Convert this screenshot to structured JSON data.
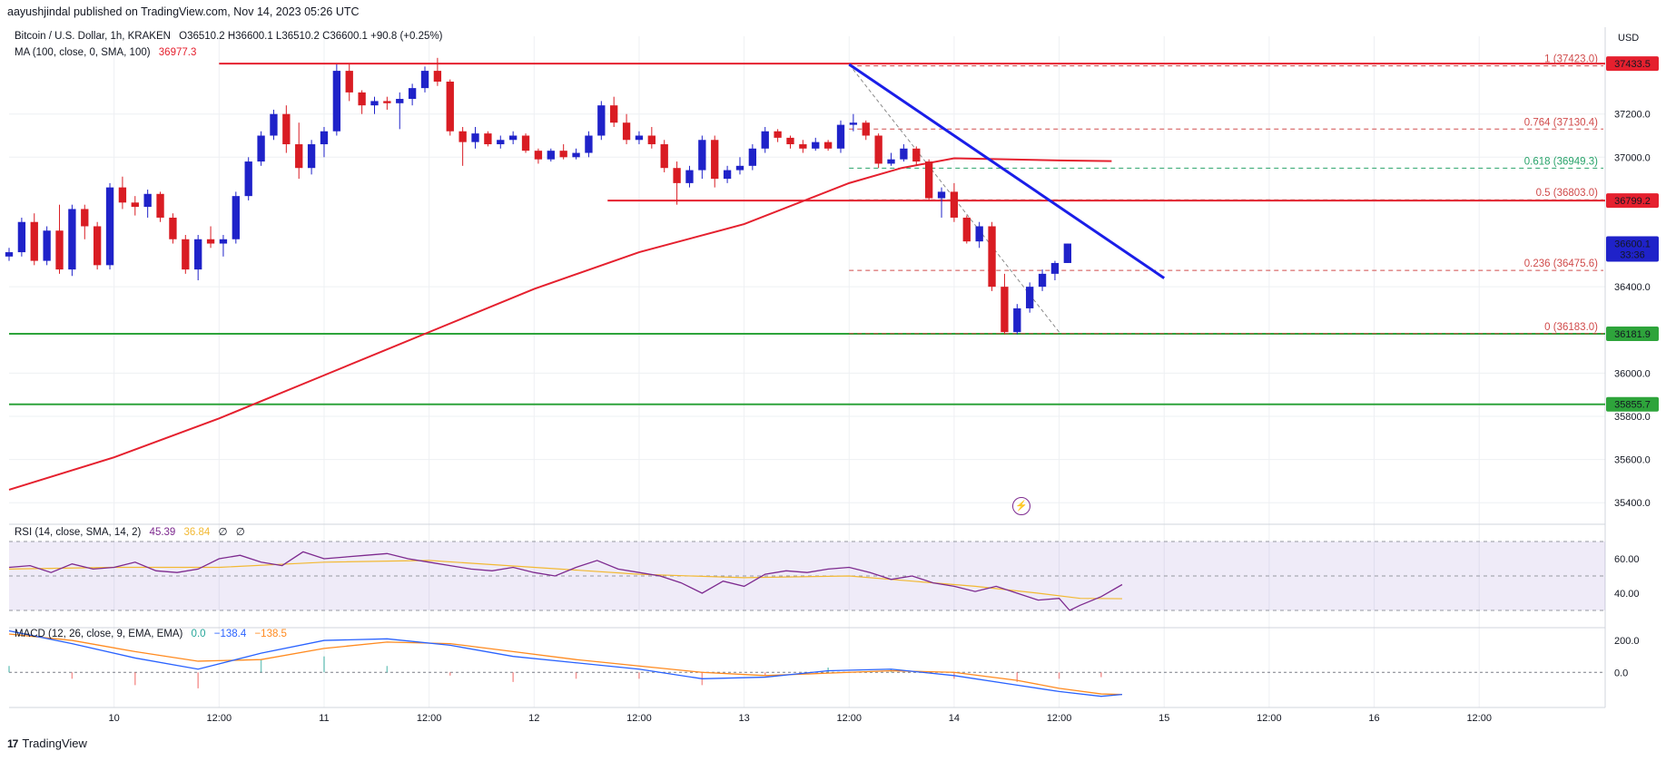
{
  "header": {
    "publisher": "aayushjindal published on TradingView.com, Nov 14, 2023 05:26 UTC"
  },
  "legend": {
    "symbol": "Bitcoin / U.S. Dollar, 1h, KRAKEN",
    "ohlc": "O36510.2 H36600.1 L36510.2 C36600.1 +90.8 (+0.25%)",
    "ma_label": "MA (100, close, 0, SMA, 100)",
    "ma_value": "36977.3",
    "rsi_label": "RSI (14, close, SMA, 14, 2)",
    "rsi_value": "45.39",
    "rsi_sma_value": "36.84",
    "rsi_extra1": "∅",
    "rsi_extra2": "∅",
    "macd_label": "MACD (12, 26, close, 9, EMA, EMA)",
    "macd_hist": "0.0",
    "macd_value": "−138.4",
    "macd_signal": "−138.5"
  },
  "currency": "USD",
  "brand": "TradingView",
  "colors": {
    "up": "#1f22c9",
    "down": "#d91c23",
    "ma": "#e5202e",
    "trendline": "#1a1ee8",
    "resistance": "#e5202e",
    "support": "#2ea43b",
    "fib": "#d04b4b",
    "fib_green": "#28a36a",
    "rsi": "#7d2a8f",
    "rsi_sma": "#f2b933",
    "macd": "#2962ff",
    "macd_signal": "#ff8a1f"
  },
  "chart_data": {
    "type": "candlestick",
    "price_ticks": [
      "37200.0",
      "37000.0",
      "36400.0",
      "36000.0",
      "35800.0",
      "35600.0",
      "35400.0"
    ],
    "rsi_ticks": [
      "60.00",
      "40.00"
    ],
    "macd_ticks": [
      "200.0",
      "0.0"
    ],
    "x_ticks": [
      "10",
      "12:00",
      "11",
      "12:00",
      "12",
      "12:00",
      "13",
      "12:00",
      "14",
      "12:00",
      "15",
      "12:00",
      "16",
      "12:00"
    ],
    "badges": [
      {
        "label": "37433.5",
        "price": 37433.5,
        "color": "#e5202e"
      },
      {
        "label": "36799.2",
        "price": 36799.2,
        "color": "#e5202e"
      },
      {
        "label": "36600.1",
        "sub": "33:36",
        "price": 36600.1,
        "color": "#1f22c9"
      },
      {
        "label": "36181.9",
        "price": 36181.9,
        "color": "#2ea43b"
      },
      {
        "label": "35855.7",
        "price": 35855.7,
        "color": "#2ea43b"
      }
    ],
    "horizontal_levels": [
      {
        "price": 37433.5,
        "kind": "resistance"
      },
      {
        "price": 36799.2,
        "kind": "resistance"
      },
      {
        "price": 36181.9,
        "kind": "support"
      },
      {
        "price": 35855.7,
        "kind": "support"
      }
    ],
    "fibonacci": [
      {
        "ratio": "1",
        "value": "(37423.0)",
        "price": 37423.0
      },
      {
        "ratio": "0.764",
        "value": "(37130.4)",
        "price": 37130.4
      },
      {
        "ratio": "0.618",
        "value": "(36949.3)",
        "price": 36949.3
      },
      {
        "ratio": "0.5",
        "value": "(36803.0)",
        "price": 36803.0
      },
      {
        "ratio": "0.236",
        "value": "(36475.6)",
        "price": 36475.6
      },
      {
        "ratio": "0",
        "value": "(36183.0)",
        "price": 36183.0
      }
    ],
    "trendline": {
      "start": {
        "day": 13.0,
        "price": 37430
      },
      "end": {
        "day": 14.5,
        "price": 36440
      }
    },
    "fib_diagonal": {
      "start": {
        "day": 13.0,
        "price": 37430
      },
      "end": {
        "day": 14.0,
        "price": 36190
      }
    },
    "ma_series": [
      [
        9.0,
        35460
      ],
      [
        9.5,
        35610
      ],
      [
        10.0,
        35790
      ],
      [
        10.5,
        35990
      ],
      [
        11.0,
        36190
      ],
      [
        11.5,
        36390
      ],
      [
        12.0,
        36560
      ],
      [
        12.5,
        36690
      ],
      [
        13.0,
        36880
      ],
      [
        13.25,
        36950
      ],
      [
        13.5,
        36995
      ],
      [
        14.0,
        36985
      ],
      [
        14.25,
        36982
      ]
    ],
    "candles": [
      [
        9.0,
        36540,
        36580,
        36520,
        36560
      ],
      [
        9.06,
        36560,
        36720,
        36540,
        36700
      ],
      [
        9.12,
        36700,
        36740,
        36500,
        36520
      ],
      [
        9.18,
        36520,
        36680,
        36500,
        36660
      ],
      [
        9.24,
        36660,
        36780,
        36460,
        36480
      ],
      [
        9.3,
        36480,
        36780,
        36450,
        36760
      ],
      [
        9.36,
        36760,
        36780,
        36620,
        36680
      ],
      [
        9.42,
        36680,
        36700,
        36480,
        36500
      ],
      [
        9.48,
        36500,
        36880,
        36480,
        36860
      ],
      [
        9.54,
        36860,
        36910,
        36760,
        36790
      ],
      [
        9.6,
        36790,
        36820,
        36730,
        36770
      ],
      [
        9.66,
        36770,
        36850,
        36720,
        36830
      ],
      [
        9.72,
        36830,
        36840,
        36700,
        36720
      ],
      [
        9.78,
        36720,
        36740,
        36600,
        36620
      ],
      [
        9.84,
        36620,
        36640,
        36460,
        36480
      ],
      [
        9.9,
        36480,
        36640,
        36430,
        36620
      ],
      [
        9.96,
        36620,
        36680,
        36580,
        36600
      ],
      [
        10.02,
        36600,
        36640,
        36540,
        36620
      ],
      [
        10.08,
        36620,
        36840,
        36600,
        36820
      ],
      [
        10.14,
        36820,
        37000,
        36800,
        36980
      ],
      [
        10.2,
        36980,
        37120,
        36960,
        37100
      ],
      [
        10.26,
        37100,
        37220,
        37080,
        37200
      ],
      [
        10.32,
        37200,
        37240,
        37020,
        37060
      ],
      [
        10.38,
        37060,
        37160,
        36900,
        36950
      ],
      [
        10.44,
        36950,
        37080,
        36920,
        37060
      ],
      [
        10.5,
        37060,
        37140,
        37000,
        37120
      ],
      [
        10.56,
        37120,
        37430,
        37100,
        37400
      ],
      [
        10.62,
        37400,
        37430,
        37260,
        37300
      ],
      [
        10.68,
        37300,
        37310,
        37200,
        37240
      ],
      [
        10.74,
        37240,
        37280,
        37200,
        37260
      ],
      [
        10.8,
        37260,
        37280,
        37220,
        37250
      ],
      [
        10.86,
        37250,
        37300,
        37130,
        37270
      ],
      [
        10.92,
        37270,
        37340,
        37240,
        37320
      ],
      [
        10.98,
        37320,
        37420,
        37300,
        37400
      ],
      [
        11.04,
        37400,
        37460,
        37330,
        37350
      ],
      [
        11.1,
        37350,
        37360,
        37100,
        37120
      ],
      [
        11.16,
        37120,
        37140,
        36960,
        37070
      ],
      [
        11.22,
        37070,
        37140,
        37040,
        37110
      ],
      [
        11.28,
        37110,
        37120,
        37050,
        37060
      ],
      [
        11.34,
        37060,
        37100,
        37040,
        37080
      ],
      [
        11.4,
        37080,
        37120,
        37060,
        37100
      ],
      [
        11.46,
        37100,
        37110,
        37020,
        37030
      ],
      [
        11.52,
        37030,
        37040,
        36970,
        36990
      ],
      [
        11.58,
        36990,
        37040,
        36980,
        37030
      ],
      [
        11.64,
        37030,
        37060,
        36990,
        37000
      ],
      [
        11.7,
        37000,
        37040,
        36990,
        37020
      ],
      [
        11.76,
        37020,
        37120,
        37000,
        37100
      ],
      [
        11.82,
        37100,
        37260,
        37080,
        37240
      ],
      [
        11.88,
        37240,
        37280,
        37140,
        37160
      ],
      [
        11.94,
        37160,
        37200,
        37060,
        37080
      ],
      [
        12.0,
        37080,
        37120,
        37060,
        37100
      ],
      [
        12.06,
        37100,
        37140,
        37040,
        37060
      ],
      [
        12.12,
        37060,
        37080,
        36930,
        36950
      ],
      [
        12.18,
        36950,
        36980,
        36780,
        36880
      ],
      [
        12.24,
        36880,
        36960,
        36860,
        36940
      ],
      [
        12.3,
        36940,
        37100,
        36900,
        37080
      ],
      [
        12.36,
        37080,
        37100,
        36860,
        36900
      ],
      [
        12.42,
        36900,
        36960,
        36880,
        36940
      ],
      [
        12.48,
        36940,
        37000,
        36920,
        36960
      ],
      [
        12.54,
        36960,
        37060,
        36940,
        37040
      ],
      [
        12.6,
        37040,
        37140,
        37020,
        37120
      ],
      [
        12.66,
        37120,
        37130,
        37070,
        37090
      ],
      [
        12.72,
        37090,
        37100,
        37040,
        37060
      ],
      [
        12.78,
        37060,
        37080,
        37020,
        37040
      ],
      [
        12.84,
        37040,
        37090,
        37030,
        37070
      ],
      [
        12.9,
        37070,
        37080,
        37030,
        37040
      ],
      [
        12.96,
        37040,
        37170,
        37020,
        37150
      ],
      [
        13.02,
        37150,
        37200,
        37120,
        37160
      ],
      [
        13.08,
        37160,
        37170,
        37080,
        37100
      ],
      [
        13.14,
        37100,
        37110,
        36950,
        36970
      ],
      [
        13.2,
        36970,
        37020,
        36960,
        36990
      ],
      [
        13.26,
        36990,
        37060,
        36980,
        37040
      ],
      [
        13.32,
        37040,
        37050,
        36960,
        36980
      ],
      [
        13.38,
        36980,
        36990,
        36800,
        36810
      ],
      [
        13.44,
        36810,
        36860,
        36720,
        36840
      ],
      [
        13.5,
        36840,
        36880,
        36700,
        36720
      ],
      [
        13.56,
        36720,
        36730,
        36600,
        36610
      ],
      [
        13.62,
        36610,
        36700,
        36580,
        36680
      ],
      [
        13.68,
        36680,
        36700,
        36380,
        36400
      ],
      [
        13.74,
        36400,
        36460,
        36180,
        36190
      ],
      [
        13.8,
        36190,
        36320,
        36180,
        36300
      ],
      [
        13.86,
        36300,
        36420,
        36280,
        36400
      ],
      [
        13.92,
        36400,
        36480,
        36380,
        36460
      ],
      [
        13.98,
        36460,
        36520,
        36430,
        36510
      ],
      [
        14.04,
        36510,
        36600,
        36510,
        36600
      ]
    ],
    "rsi_series": [
      [
        9.0,
        55
      ],
      [
        9.1,
        56
      ],
      [
        9.2,
        52
      ],
      [
        9.3,
        57
      ],
      [
        9.4,
        54
      ],
      [
        9.5,
        55
      ],
      [
        9.6,
        58
      ],
      [
        9.7,
        53
      ],
      [
        9.8,
        52
      ],
      [
        9.9,
        54
      ],
      [
        10.0,
        60
      ],
      [
        10.1,
        62
      ],
      [
        10.2,
        58
      ],
      [
        10.3,
        56
      ],
      [
        10.4,
        64
      ],
      [
        10.5,
        60
      ],
      [
        10.6,
        61
      ],
      [
        10.7,
        62
      ],
      [
        10.8,
        63
      ],
      [
        10.9,
        60
      ],
      [
        11.0,
        58
      ],
      [
        11.1,
        56
      ],
      [
        11.2,
        54
      ],
      [
        11.3,
        53
      ],
      [
        11.4,
        55
      ],
      [
        11.5,
        52
      ],
      [
        11.6,
        50
      ],
      [
        11.7,
        55
      ],
      [
        11.8,
        59
      ],
      [
        11.9,
        54
      ],
      [
        12.0,
        52
      ],
      [
        12.1,
        50
      ],
      [
        12.2,
        46
      ],
      [
        12.3,
        40
      ],
      [
        12.4,
        47
      ],
      [
        12.5,
        44
      ],
      [
        12.6,
        51
      ],
      [
        12.7,
        53
      ],
      [
        12.8,
        52
      ],
      [
        12.9,
        54
      ],
      [
        13.0,
        55
      ],
      [
        13.1,
        52
      ],
      [
        13.2,
        48
      ],
      [
        13.3,
        50
      ],
      [
        13.4,
        46
      ],
      [
        13.5,
        44
      ],
      [
        13.6,
        41
      ],
      [
        13.7,
        44
      ],
      [
        13.8,
        40
      ],
      [
        13.9,
        36
      ],
      [
        14.0,
        37
      ],
      [
        14.05,
        30
      ],
      [
        14.1,
        33
      ],
      [
        14.2,
        38
      ],
      [
        14.3,
        45
      ]
    ],
    "rsi_sma_series": [
      [
        9.0,
        54
      ],
      [
        9.5,
        55
      ],
      [
        10.0,
        55
      ],
      [
        10.5,
        58
      ],
      [
        11.0,
        59
      ],
      [
        11.5,
        55
      ],
      [
        12.0,
        51
      ],
      [
        12.5,
        49
      ],
      [
        13.0,
        50
      ],
      [
        13.3,
        47
      ],
      [
        13.6,
        44
      ],
      [
        13.9,
        40
      ],
      [
        14.1,
        37
      ],
      [
        14.3,
        36.8
      ]
    ],
    "macd_series": [
      [
        9.0,
        260
      ],
      [
        9.3,
        180
      ],
      [
        9.6,
        90
      ],
      [
        9.9,
        20
      ],
      [
        10.2,
        120
      ],
      [
        10.5,
        200
      ],
      [
        10.8,
        210
      ],
      [
        11.1,
        170
      ],
      [
        11.4,
        100
      ],
      [
        11.7,
        60
      ],
      [
        12.0,
        20
      ],
      [
        12.3,
        -40
      ],
      [
        12.6,
        -30
      ],
      [
        12.9,
        10
      ],
      [
        13.2,
        20
      ],
      [
        13.5,
        -20
      ],
      [
        13.8,
        -80
      ],
      [
        14.0,
        -120
      ],
      [
        14.2,
        -150
      ],
      [
        14.3,
        -138.4
      ]
    ],
    "macd_signal_series": [
      [
        9.0,
        240
      ],
      [
        9.3,
        200
      ],
      [
        9.6,
        130
      ],
      [
        9.9,
        70
      ],
      [
        10.2,
        80
      ],
      [
        10.5,
        150
      ],
      [
        10.8,
        190
      ],
      [
        11.1,
        180
      ],
      [
        11.4,
        130
      ],
      [
        11.7,
        80
      ],
      [
        12.0,
        40
      ],
      [
        12.3,
        0
      ],
      [
        12.6,
        -20
      ],
      [
        12.9,
        -5
      ],
      [
        13.2,
        10
      ],
      [
        13.5,
        0
      ],
      [
        13.8,
        -50
      ],
      [
        14.0,
        -100
      ],
      [
        14.2,
        -135
      ],
      [
        14.3,
        -138.5
      ]
    ],
    "macd_ylim": [
      -220,
      280
    ],
    "price_ylim": [
      35300,
      37560
    ],
    "rsi_ylim": [
      20,
      80
    ],
    "x_range": [
      9.0,
      16.6
    ]
  }
}
